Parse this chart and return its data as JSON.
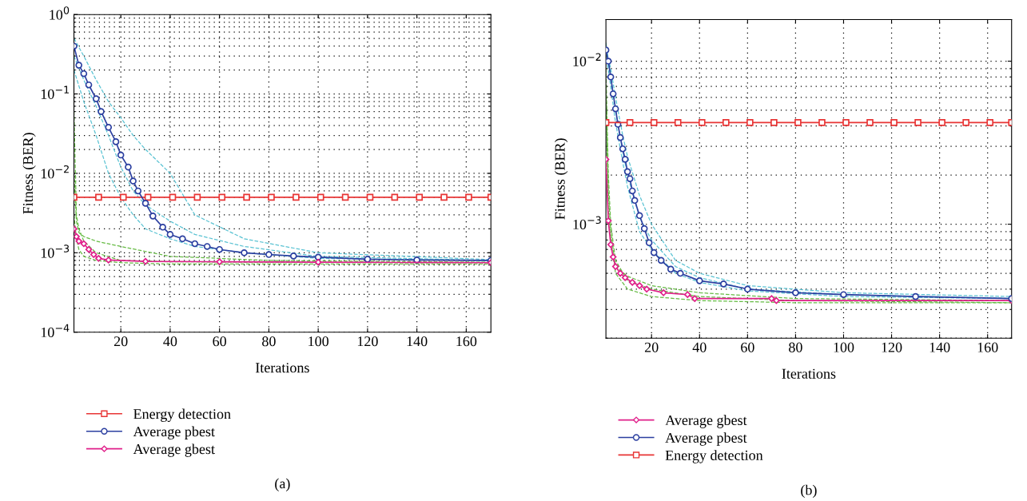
{
  "chart_data": [
    {
      "type": "line",
      "xlabel": "Iterations",
      "ylabel": "Fitness (BER)",
      "log": "y",
      "grid": true,
      "legend": "bottom left",
      "xlim": [
        1,
        170
      ],
      "xticks": [
        20,
        40,
        60,
        80,
        100,
        120,
        140,
        160
      ],
      "ylim": [
        0.0001,
        1
      ],
      "yticks": [
        {
          "value": 0.0001,
          "label": "10$^{−4}$"
        },
        {
          "value": 0.001,
          "label": "10$^{−3}$"
        },
        {
          "value": 0.01,
          "label": "10$^{−2}$"
        },
        {
          "value": 0.1,
          "label": "10$^{−1}$"
        },
        {
          "value": 1,
          "label": "10$^{0}$"
        }
      ],
      "annotations": [
        {
          "text": "(a)"
        }
      ],
      "series": [
        {
          "color": "#5bc3d3",
          "marker": "none",
          "line_style": "dashed",
          "x": [
            1,
            5,
            10,
            15,
            20,
            25,
            30,
            40,
            50,
            70,
            100,
            170
          ],
          "values": [
            0.3,
            0.15,
            0.07,
            0.03,
            0.012,
            0.006,
            0.004,
            0.0025,
            0.0017,
            0.0012,
            0.0009,
            0.0008
          ]
        },
        {
          "color": "#5bc3d3",
          "marker": "none",
          "line_style": "dashed",
          "x": [
            1,
            5,
            10,
            15,
            20,
            25,
            30,
            40,
            50,
            70,
            100,
            170
          ],
          "values": [
            0.5,
            0.3,
            0.15,
            0.08,
            0.05,
            0.03,
            0.02,
            0.01,
            0.003,
            0.0015,
            0.001,
            0.00082
          ]
        },
        {
          "color": "#5bc3d3",
          "marker": "none",
          "line_style": "dashed",
          "x": [
            1,
            5,
            10,
            15,
            20,
            25,
            30,
            40,
            50,
            70,
            100,
            170
          ],
          "values": [
            0.2,
            0.08,
            0.03,
            0.01,
            0.005,
            0.003,
            0.002,
            0.0015,
            0.0012,
            0.001,
            0.00085,
            0.0008
          ]
        },
        {
          "color": "#66bb44",
          "marker": "none",
          "line_style": "dashed",
          "x": [
            1,
            2,
            3,
            5,
            10,
            20,
            40,
            80,
            170
          ],
          "values": [
            0.06,
            0.003,
            0.002,
            0.0014,
            0.001,
            0.0008,
            0.00077,
            0.00076,
            0.00075
          ]
        },
        {
          "color": "#66bb44",
          "marker": "none",
          "line_style": "dashed",
          "x": [
            1,
            2,
            3,
            5,
            10,
            20,
            40,
            80,
            170
          ],
          "values": [
            0.01,
            0.0025,
            0.0018,
            0.0016,
            0.0014,
            0.0012,
            0.0009,
            0.0008,
            0.00076
          ]
        },
        {
          "color": "#66bb44",
          "marker": "none",
          "line_style": "dashed",
          "x": [
            1,
            2,
            3,
            5,
            10,
            20,
            40,
            80,
            170
          ],
          "values": [
            0.003,
            0.0015,
            0.0011,
            0.0009,
            0.0008,
            0.00075,
            0.00072,
            0.00072,
            0.00072
          ]
        },
        {
          "name": "Energy detection",
          "color": "#e83535",
          "marker": "square",
          "x": [
            1,
            11,
            21,
            31,
            41,
            51,
            61,
            71,
            81,
            91,
            101,
            111,
            121,
            131,
            141,
            151,
            161,
            170
          ],
          "values": [
            0.005,
            0.005,
            0.005,
            0.005,
            0.005,
            0.005,
            0.005,
            0.005,
            0.005,
            0.005,
            0.005,
            0.005,
            0.005,
            0.005,
            0.005,
            0.005,
            0.005,
            0.005
          ]
        },
        {
          "name": "Average pbest",
          "color": "#2b3fa0",
          "marker": "circle",
          "x": [
            1,
            3,
            5,
            7,
            10,
            12,
            15,
            18,
            20,
            23,
            25,
            27,
            30,
            33,
            37,
            40,
            45,
            50,
            55,
            60,
            70,
            80,
            90,
            100,
            120,
            140,
            170
          ],
          "values": [
            0.4,
            0.23,
            0.18,
            0.13,
            0.087,
            0.06,
            0.038,
            0.025,
            0.017,
            0.012,
            0.008,
            0.006,
            0.0042,
            0.0029,
            0.0021,
            0.0017,
            0.0015,
            0.0013,
            0.0012,
            0.0011,
            0.001,
            0.00095,
            0.00091,
            0.00088,
            0.00083,
            0.00081,
            0.0008
          ]
        },
        {
          "name": "Average gbest",
          "color": "#e0208a",
          "marker": "diamond",
          "x": [
            1,
            2,
            3,
            5,
            7,
            9,
            11,
            15,
            30,
            60,
            100,
            170
          ],
          "values": [
            0.002,
            0.0016,
            0.0014,
            0.0013,
            0.0011,
            0.00095,
            0.00085,
            0.00081,
            0.00078,
            0.00077,
            0.00076,
            0.00075
          ]
        }
      ]
    },
    {
      "type": "line",
      "xlabel": "Iterations",
      "ylabel": "Fitness (BER)",
      "log": "y",
      "grid": true,
      "legend": "bottom left",
      "xlim": [
        1,
        170
      ],
      "xticks": [
        20,
        40,
        60,
        80,
        100,
        120,
        140,
        160
      ],
      "ylim": [
        0.0002,
        0.018
      ],
      "yticks": [
        {
          "value": 0.001,
          "label": "10$^{−3}$"
        },
        {
          "value": 0.01,
          "label": "10$^{−2}$"
        }
      ],
      "annotations": [
        {
          "text": "(b)"
        }
      ],
      "series": [
        {
          "color": "#5bc3d3",
          "marker": "none",
          "line_style": "dashed",
          "x": [
            1,
            3,
            5,
            8,
            10,
            15,
            20,
            30,
            40,
            60,
            100,
            170
          ],
          "values": [
            0.013,
            0.008,
            0.005,
            0.0028,
            0.002,
            0.0011,
            0.0008,
            0.00055,
            0.00047,
            0.0004,
            0.00037,
            0.00035
          ]
        },
        {
          "color": "#5bc3d3",
          "marker": "none",
          "line_style": "dashed",
          "x": [
            1,
            3,
            5,
            8,
            10,
            15,
            20,
            30,
            40,
            60,
            100,
            170
          ],
          "values": [
            0.012,
            0.009,
            0.006,
            0.0035,
            0.0026,
            0.0015,
            0.001,
            0.0006,
            0.0005,
            0.00042,
            0.00038,
            0.00036
          ]
        },
        {
          "color": "#5bc3d3",
          "marker": "none",
          "line_style": "dashed",
          "x": [
            1,
            3,
            5,
            8,
            10,
            15,
            20,
            30,
            40,
            60,
            100,
            170
          ],
          "values": [
            0.011,
            0.007,
            0.0042,
            0.0024,
            0.0017,
            0.0009,
            0.0007,
            0.0005,
            0.00044,
            0.00039,
            0.00036,
            0.00035
          ]
        },
        {
          "color": "#66bb44",
          "marker": "none",
          "line_style": "dashed",
          "x": [
            1,
            2,
            3,
            5,
            10,
            20,
            40,
            80,
            170
          ],
          "values": [
            0.009,
            0.002,
            0.001,
            0.0006,
            0.00045,
            0.0004,
            0.00036,
            0.00034,
            0.00033
          ]
        },
        {
          "color": "#66bb44",
          "marker": "none",
          "line_style": "dashed",
          "x": [
            1,
            2,
            3,
            5,
            10,
            20,
            40,
            80,
            170
          ],
          "values": [
            0.005,
            0.0012,
            0.0008,
            0.0005,
            0.0004,
            0.00036,
            0.00034,
            0.00033,
            0.00033
          ]
        },
        {
          "color": "#66bb44",
          "marker": "none",
          "line_style": "dashed",
          "x": [
            1,
            2,
            3,
            5,
            10,
            20,
            40,
            80,
            170
          ],
          "values": [
            0.007,
            0.0016,
            0.0009,
            0.00055,
            0.00048,
            0.00042,
            0.00038,
            0.00035,
            0.00034
          ]
        },
        {
          "name": "Average gbest",
          "color": "#e0208a",
          "marker": "diamond",
          "x": [
            1,
            2,
            3,
            4,
            5,
            7,
            9,
            12,
            15,
            18,
            25,
            35,
            38,
            70,
            72,
            170
          ],
          "values": [
            0.0025,
            0.00105,
            0.00075,
            0.00063,
            0.00055,
            0.0005,
            0.00047,
            0.00044,
            0.00042,
            0.0004,
            0.00038,
            0.00037,
            0.00035,
            0.00035,
            0.00034,
            0.00034
          ]
        },
        {
          "name": "Average pbest",
          "color": "#2b3fa0",
          "marker": "circle",
          "x": [
            1,
            2,
            3,
            4,
            5,
            6,
            7,
            8,
            9,
            10,
            11,
            12,
            13,
            15,
            17,
            19,
            21,
            24,
            28,
            32,
            40,
            50,
            60,
            80,
            100,
            130,
            170
          ],
          "values": [
            0.0117,
            0.01,
            0.008,
            0.0063,
            0.0051,
            0.0041,
            0.0034,
            0.0029,
            0.0025,
            0.0021,
            0.0019,
            0.0016,
            0.0014,
            0.00113,
            0.00094,
            0.00077,
            0.00067,
            0.0006,
            0.00053,
            0.0005,
            0.00045,
            0.00043,
            0.0004,
            0.00038,
            0.00037,
            0.00036,
            0.00035
          ]
        },
        {
          "name": "Energy detection",
          "color": "#e83535",
          "marker": "square",
          "x": [
            1,
            11,
            21,
            31,
            41,
            51,
            61,
            71,
            81,
            91,
            101,
            111,
            121,
            131,
            141,
            151,
            161,
            170
          ],
          "values": [
            0.0042,
            0.0042,
            0.0042,
            0.0042,
            0.0042,
            0.0042,
            0.0042,
            0.0042,
            0.0042,
            0.0042,
            0.0042,
            0.0042,
            0.0042,
            0.0042,
            0.0042,
            0.0042,
            0.0042,
            0.0042
          ]
        }
      ]
    }
  ]
}
